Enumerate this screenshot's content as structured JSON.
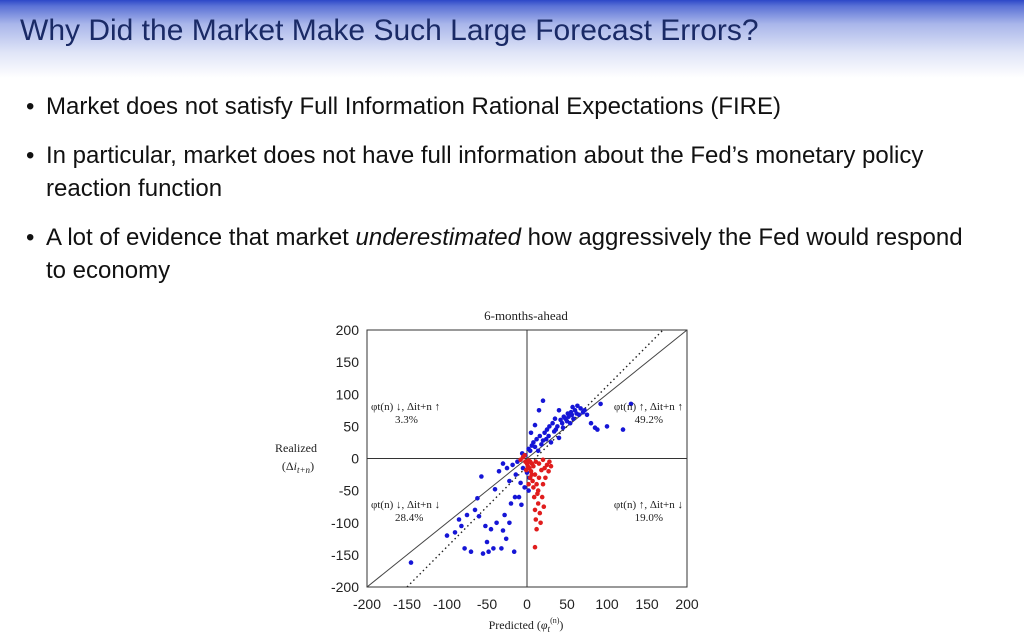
{
  "slide": {
    "title": "Why Did the Market Make Such Large Forecast Errors?",
    "bullets": [
      {
        "text": "Market does not satisfy Full Information Rational Expectations (FIRE)"
      },
      {
        "text": "In particular, market does not have full information about the Fed’s monetary policy reaction function"
      },
      {
        "before": "A lot of evidence that market ",
        "emph": "underestimated",
        "after": " how aggressively the Fed would respond to economy"
      }
    ]
  },
  "colors": {
    "title": "#1a2a66",
    "blue_points": "#1515d6",
    "red_points": "#e01d1d"
  },
  "chart_data": {
    "type": "scatter",
    "title": "6-months-ahead",
    "xlabel": "Predicted (φt(n))",
    "ylabel": "Realized (Δit+n)",
    "xlim": [
      -200,
      200
    ],
    "ylim": [
      -200,
      200
    ],
    "xticks": [
      -200,
      -150,
      -100,
      -50,
      0,
      50,
      100,
      150,
      200
    ],
    "yticks": [
      200,
      150,
      100,
      50,
      0,
      -50,
      -100,
      -150,
      -200
    ],
    "grid": false,
    "reference_lines": [
      "45-degree solid line",
      "dotted line (steeper slope)",
      "zero axes"
    ],
    "quadrant_labels": [
      {
        "label": "φt(n) ↓, Δit+n ↑",
        "value": "3.3%",
        "quadrant": "top-left"
      },
      {
        "label": "φt(n) ↑, Δit+n ↑",
        "value": "49.2%",
        "quadrant": "top-right"
      },
      {
        "label": "φt(n) ↓, Δit+n ↓",
        "value": "28.4%",
        "quadrant": "bottom-left"
      },
      {
        "label": "φt(n) ↑, Δit+n ↓",
        "value": "19.0%",
        "quadrant": "bottom-right"
      }
    ],
    "series": [
      {
        "color": "#1515d6",
        "points": [
          [
            -145,
            -162
          ],
          [
            -100,
            -120
          ],
          [
            -90,
            -115
          ],
          [
            -85,
            -95
          ],
          [
            -82,
            -105
          ],
          [
            -78,
            -140
          ],
          [
            -75,
            -88
          ],
          [
            -70,
            -145
          ],
          [
            -65,
            -80
          ],
          [
            -60,
            -90
          ],
          [
            -57,
            -28
          ],
          [
            -55,
            -148
          ],
          [
            -52,
            -105
          ],
          [
            -50,
            -130
          ],
          [
            -48,
            -145
          ],
          [
            -45,
            -110
          ],
          [
            -42,
            -140
          ],
          [
            -40,
            -48
          ],
          [
            -38,
            -100
          ],
          [
            -35,
            -20
          ],
          [
            -32,
            -140
          ],
          [
            -30,
            -112
          ],
          [
            -28,
            -88
          ],
          [
            -26,
            -125
          ],
          [
            -25,
            -15
          ],
          [
            -22,
            -100
          ],
          [
            -20,
            -70
          ],
          [
            -18,
            -10
          ],
          [
            -16,
            -145
          ],
          [
            -15,
            -60
          ],
          [
            -14,
            -25
          ],
          [
            -12,
            -5
          ],
          [
            -10,
            -60
          ],
          [
            -8,
            -38
          ],
          [
            -7,
            -72
          ],
          [
            -6,
            8
          ],
          [
            -5,
            -15
          ],
          [
            -3,
            -45
          ],
          [
            -2,
            5
          ],
          [
            0,
            -22
          ],
          [
            2,
            -50
          ],
          [
            3,
            -30
          ],
          [
            2,
            15
          ],
          [
            4,
            12
          ],
          [
            6,
            20
          ],
          [
            8,
            25
          ],
          [
            10,
            18
          ],
          [
            12,
            30
          ],
          [
            14,
            12
          ],
          [
            16,
            35
          ],
          [
            18,
            22
          ],
          [
            20,
            28
          ],
          [
            22,
            40
          ],
          [
            24,
            30
          ],
          [
            25,
            45
          ],
          [
            27,
            35
          ],
          [
            28,
            50
          ],
          [
            30,
            25
          ],
          [
            32,
            55
          ],
          [
            34,
            42
          ],
          [
            35,
            62
          ],
          [
            36,
            45
          ],
          [
            38,
            50
          ],
          [
            40,
            32
          ],
          [
            42,
            60
          ],
          [
            44,
            55
          ],
          [
            45,
            48
          ],
          [
            46,
            65
          ],
          [
            48,
            62
          ],
          [
            50,
            58
          ],
          [
            51,
            70
          ],
          [
            52,
            65
          ],
          [
            54,
            55
          ],
          [
            55,
            72
          ],
          [
            56,
            68
          ],
          [
            57,
            80
          ],
          [
            58,
            62
          ],
          [
            60,
            75
          ],
          [
            62,
            70
          ],
          [
            63,
            82
          ],
          [
            65,
            68
          ],
          [
            67,
            78
          ],
          [
            70,
            72
          ],
          [
            72,
            75
          ],
          [
            75,
            68
          ],
          [
            80,
            55
          ],
          [
            85,
            48
          ],
          [
            88,
            45
          ],
          [
            92,
            85
          ],
          [
            100,
            50
          ],
          [
            120,
            45
          ],
          [
            130,
            85
          ],
          [
            15,
            75
          ],
          [
            20,
            90
          ],
          [
            10,
            52
          ],
          [
            5,
            40
          ],
          [
            40,
            75
          ],
          [
            -22,
            -35
          ],
          [
            -30,
            -8
          ],
          [
            -62,
            -62
          ]
        ]
      },
      {
        "color": "#e01d1d",
        "points": [
          [
            -8,
            -2
          ],
          [
            -5,
            2
          ],
          [
            -3,
            5
          ],
          [
            -2,
            -5
          ],
          [
            0,
            -8
          ],
          [
            1,
            -12
          ],
          [
            2,
            -3
          ],
          [
            3,
            -15
          ],
          [
            4,
            -5
          ],
          [
            5,
            -20
          ],
          [
            6,
            -8
          ],
          [
            6,
            -25
          ],
          [
            7,
            -35
          ],
          [
            8,
            -45
          ],
          [
            8,
            -12
          ],
          [
            9,
            -60
          ],
          [
            10,
            -80
          ],
          [
            10,
            -25
          ],
          [
            11,
            -95
          ],
          [
            12,
            -110
          ],
          [
            12,
            -40
          ],
          [
            13,
            -55
          ],
          [
            14,
            -70
          ],
          [
            15,
            -30
          ],
          [
            16,
            -85
          ],
          [
            17,
            -100
          ],
          [
            18,
            -18
          ],
          [
            19,
            -60
          ],
          [
            20,
            -40
          ],
          [
            21,
            -75
          ],
          [
            22,
            -15
          ],
          [
            23,
            -30
          ],
          [
            25,
            -10
          ],
          [
            27,
            -20
          ],
          [
            28,
            -5
          ],
          [
            30,
            -12
          ],
          [
            10,
            -138
          ],
          [
            14,
            -50
          ],
          [
            4,
            -30
          ],
          [
            2,
            -40
          ],
          [
            -1,
            -18
          ],
          [
            11,
            -5
          ],
          [
            15,
            -8
          ],
          [
            20,
            -2
          ]
        ]
      }
    ]
  }
}
